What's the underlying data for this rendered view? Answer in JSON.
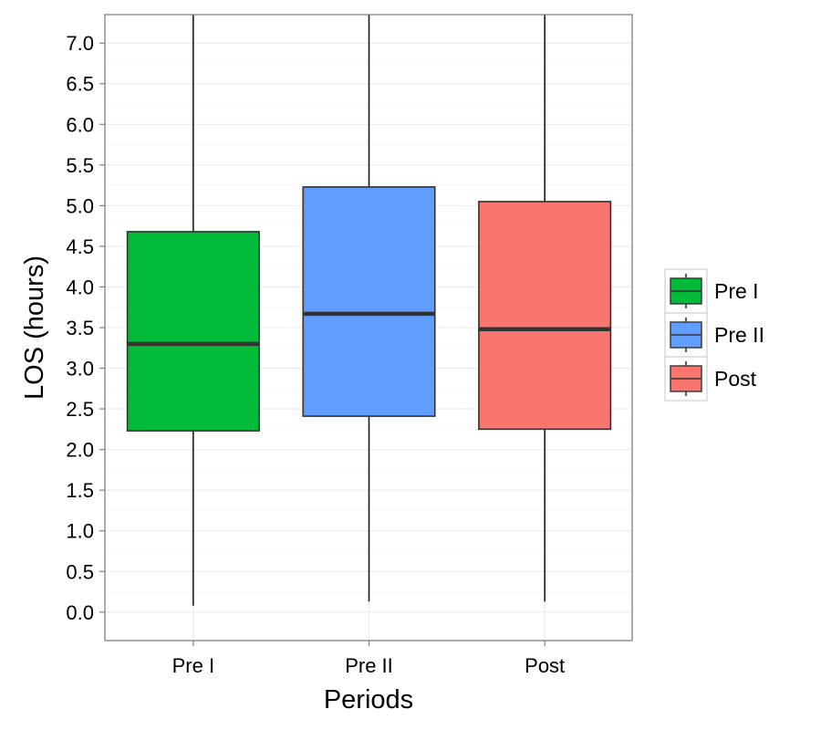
{
  "chart_data": {
    "type": "boxplot",
    "title": "",
    "xlabel": "Periods",
    "ylabel": "LOS (hours)",
    "ylim": [
      -0.35,
      7.35
    ],
    "yticks": [
      "0.0",
      "0.5",
      "1.0",
      "1.5",
      "2.0",
      "2.5",
      "3.0",
      "3.5",
      "4.0",
      "4.5",
      "5.0",
      "5.5",
      "6.0",
      "6.5",
      "7.0"
    ],
    "grid": true,
    "legend_position": "right",
    "categories": [
      "Pre I",
      "Pre II",
      "Post"
    ],
    "series": [
      {
        "name": "Pre I",
        "color": "#00BA38",
        "min": 0.08,
        "q1": 2.23,
        "median": 3.3,
        "q3": 4.68,
        "max": 7.35
      },
      {
        "name": "Pre II",
        "color": "#619CFF",
        "min": 0.13,
        "q1": 2.41,
        "median": 3.67,
        "q3": 5.23,
        "max": 7.35
      },
      {
        "name": "Post",
        "color": "#F8766D",
        "min": 0.13,
        "q1": 2.25,
        "median": 3.48,
        "q3": 5.05,
        "max": 7.35
      }
    ]
  }
}
